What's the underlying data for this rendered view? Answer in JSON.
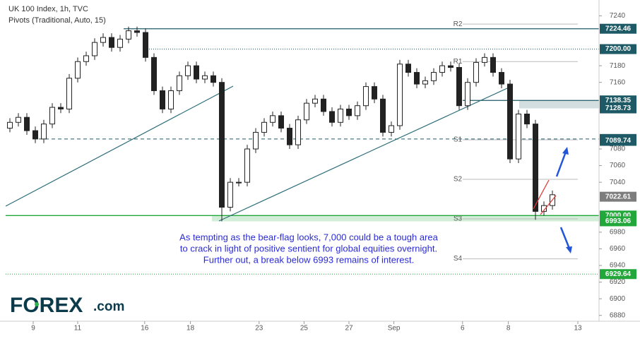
{
  "chart_data": {
    "type": "candlestick",
    "title": "UK 100 Index, 1h, TVC",
    "subtitle": "Pivots (Traditional, Auto, 15)",
    "annotation": [
      "As tempting as the bear-flag looks, 7,000 could be a tough area",
      "to crack in light of positive sentient for global equities overnight.",
      "Further out, a break below 6993 remains of interest."
    ],
    "logo": {
      "brand": "FOREX",
      "suffix": ".com"
    },
    "xlim": [
      -0.5,
      69.5
    ],
    "xticks": [
      {
        "value": 2.75,
        "label": "9"
      },
      {
        "value": 8.0,
        "label": "11"
      },
      {
        "value": 15.9,
        "label": "16"
      },
      {
        "value": 21.3,
        "label": "18"
      },
      {
        "value": 29.4,
        "label": "23"
      },
      {
        "value": 34.7,
        "label": "25"
      },
      {
        "value": 40.0,
        "label": "27"
      },
      {
        "value": 45.3,
        "label": "Sep"
      },
      {
        "value": 53.4,
        "label": "6"
      },
      {
        "value": 58.8,
        "label": "8"
      },
      {
        "value": 67.0,
        "label": "13"
      }
    ],
    "ylim": [
      6873,
      7259
    ],
    "yticks": [
      7240,
      7180,
      7160,
      7080,
      7060,
      7040,
      6980,
      6960,
      6940,
      6920,
      6900,
      6880
    ],
    "x": [
      0,
      1,
      2,
      3,
      4,
      5,
      6,
      7,
      8,
      9,
      10,
      11,
      12,
      13,
      14,
      15,
      16,
      17,
      18,
      19,
      20,
      21,
      22,
      23,
      24,
      25,
      26,
      27,
      28,
      29,
      30,
      31,
      32,
      33,
      34,
      35,
      36,
      37,
      38,
      39,
      40,
      41,
      42,
      43,
      44,
      45,
      46,
      47,
      48,
      49,
      50,
      51,
      52,
      53,
      54,
      55,
      56,
      57,
      58,
      59,
      60,
      61,
      62,
      63,
      64
    ],
    "open": [
      7105,
      7112,
      7118,
      7102,
      7092,
      7110,
      7130,
      7128,
      7165,
      7185,
      7192,
      7208,
      7214,
      7202,
      7212,
      7222,
      7220,
      7190,
      7150,
      7128,
      7150,
      7168,
      7180,
      7164,
      7168,
      7160,
      7010,
      7040,
      7040,
      7080,
      7100,
      7112,
      7120,
      7105,
      7085,
      7115,
      7135,
      7140,
      7125,
      7112,
      7128,
      7120,
      7132,
      7155,
      7140,
      7100,
      7108,
      7182,
      7172,
      7158,
      7162,
      7172,
      7180,
      7178,
      7132,
      7160,
      7184,
      7190,
      7172,
      7158,
      7068,
      7122,
      7110,
      7005,
      7012
    ],
    "high": [
      7117,
      7123,
      7123,
      7107,
      7115,
      7135,
      7135,
      7170,
      7190,
      7197,
      7213,
      7219,
      7219,
      7217,
      7227,
      7227,
      7225,
      7195,
      7155,
      7155,
      7173,
      7185,
      7185,
      7173,
      7173,
      7165,
      7045,
      7045,
      7085,
      7105,
      7117,
      7125,
      7125,
      7110,
      7120,
      7140,
      7145,
      7145,
      7130,
      7133,
      7133,
      7137,
      7160,
      7160,
      7145,
      7113,
      7187,
      7187,
      7177,
      7167,
      7177,
      7185,
      7185,
      7183,
      7165,
      7189,
      7195,
      7195,
      7177,
      7163,
      7127,
      7127,
      7115,
      7017,
      7030
    ],
    "low": [
      7100,
      7107,
      7097,
      7087,
      7087,
      7105,
      7123,
      7123,
      7160,
      7180,
      7187,
      7203,
      7197,
      7197,
      7207,
      7215,
      7185,
      7145,
      7123,
      7123,
      7145,
      7163,
      7159,
      7159,
      7155,
      6993,
      7005,
      7035,
      7035,
      7075,
      7095,
      7107,
      7100,
      7080,
      7080,
      7110,
      7130,
      7120,
      7107,
      7107,
      7115,
      7115,
      7127,
      7135,
      7095,
      7095,
      7103,
      7167,
      7153,
      7153,
      7157,
      7167,
      7173,
      7127,
      7127,
      7155,
      7179,
      7167,
      7153,
      7063,
      7063,
      7105,
      6995,
      7000,
      7007
    ],
    "close": [
      7112,
      7118,
      7102,
      7092,
      7110,
      7130,
      7128,
      7165,
      7185,
      7192,
      7208,
      7214,
      7202,
      7212,
      7222,
      7220,
      7190,
      7150,
      7128,
      7150,
      7168,
      7180,
      7164,
      7168,
      7160,
      7010,
      7040,
      7040,
      7080,
      7100,
      7112,
      7120,
      7105,
      7085,
      7115,
      7135,
      7140,
      7125,
      7112,
      7128,
      7120,
      7132,
      7155,
      7140,
      7100,
      7108,
      7182,
      7172,
      7158,
      7162,
      7172,
      7180,
      7178,
      7132,
      7160,
      7184,
      7190,
      7172,
      7158,
      7068,
      7122,
      7110,
      7005,
      7012,
      7025
    ],
    "levels": [
      {
        "value": 7224.46,
        "color": "#1e5a66",
        "style": "solid"
      },
      {
        "value": 7200,
        "label": "7200.00",
        "color": "#1e5a66",
        "style": "dotted"
      },
      {
        "value": 7138.35,
        "color": "#1e5a66",
        "style": "solid"
      },
      {
        "value": 7128.73,
        "color": "#1e5a66",
        "style": "zone"
      },
      {
        "value": 7092.03,
        "color": "#1e5a66",
        "style": "dashed"
      },
      {
        "value": 7089.74,
        "color": "#1e5a66",
        "style": "none"
      },
      {
        "value": 7022.61,
        "color": "#7d7d7d",
        "style": "none"
      },
      {
        "value": 7000,
        "label": "7000.00",
        "color": "#22a83a",
        "style": "solid"
      },
      {
        "value": 6993.06,
        "color": "#22a83a",
        "style": "zone"
      },
      {
        "value": 6929.64,
        "color": "#22a83a",
        "style": "dotted"
      }
    ],
    "pivots": [
      {
        "name": "R2",
        "value": 7230
      },
      {
        "name": "R1",
        "value": 7185
      },
      {
        "name": "S1",
        "value": 7091
      },
      {
        "name": "S2",
        "value": 7043.5
      },
      {
        "name": "S3",
        "value": 6996
      },
      {
        "name": "S4",
        "value": 6948
      }
    ]
  }
}
